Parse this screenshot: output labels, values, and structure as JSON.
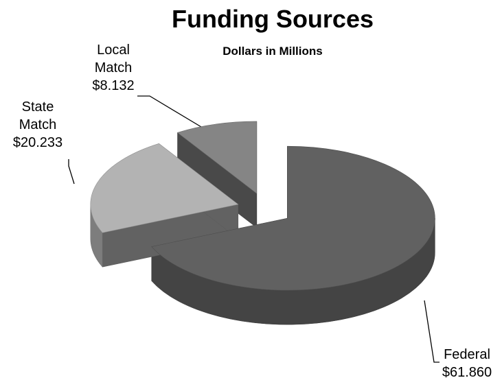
{
  "chart_data": {
    "type": "pie3d",
    "title": "Funding Sources",
    "subtitle": "Dollars in Millions",
    "categories": [
      "Federal",
      "State Match",
      "Local Match"
    ],
    "values": [
      61.86,
      20.233,
      8.132
    ],
    "value_labels": [
      "$61.860",
      "$20.233",
      "$8.132"
    ],
    "colors": [
      "#616161",
      "#b3b3b3",
      "#858585"
    ]
  }
}
